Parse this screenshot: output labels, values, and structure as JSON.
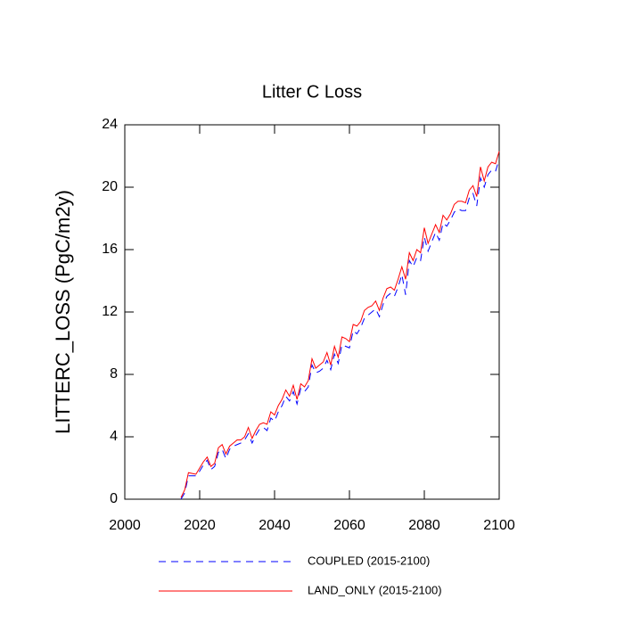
{
  "chart_data": {
    "type": "line",
    "title": "Litter C Loss",
    "y_label": "LITTERC_LOSS  (PgC/m2y)",
    "x": [
      2015,
      2016,
      2017,
      2018,
      2019,
      2020,
      2021,
      2022,
      2023,
      2024,
      2025,
      2026,
      2027,
      2028,
      2029,
      2030,
      2031,
      2032,
      2033,
      2034,
      2035,
      2036,
      2037,
      2038,
      2039,
      2040,
      2041,
      2042,
      2043,
      2044,
      2045,
      2046,
      2047,
      2048,
      2049,
      2050,
      2051,
      2052,
      2053,
      2054,
      2055,
      2056,
      2057,
      2058,
      2059,
      2060,
      2061,
      2062,
      2063,
      2064,
      2065,
      2066,
      2067,
      2068,
      2069,
      2070,
      2071,
      2072,
      2073,
      2074,
      2075,
      2076,
      2077,
      2078,
      2079,
      2080,
      2081,
      2082,
      2083,
      2084,
      2085,
      2086,
      2087,
      2088,
      2089,
      2090,
      2091,
      2092,
      2093,
      2094,
      2095,
      2096,
      2097,
      2098,
      2099,
      2100
    ],
    "series": [
      {
        "name": "COUPLED (2015-2100)",
        "color": "#0000ff",
        "style": "dashed",
        "values": [
          0.0,
          0.4,
          1.5,
          1.5,
          1.5,
          1.8,
          2.2,
          2.5,
          1.9,
          2.1,
          3.0,
          3.2,
          2.6,
          3.2,
          3.4,
          3.5,
          3.6,
          3.8,
          4.2,
          3.6,
          4.1,
          4.5,
          4.6,
          4.4,
          5.2,
          5.0,
          5.6,
          6.0,
          6.6,
          6.3,
          6.9,
          6.1,
          7.1,
          6.9,
          7.2,
          8.6,
          8.1,
          8.2,
          8.4,
          8.9,
          8.3,
          9.3,
          8.7,
          9.9,
          9.8,
          9.7,
          10.8,
          10.6,
          11.0,
          11.6,
          11.8,
          12.0,
          12.2,
          11.7,
          12.5,
          13.0,
          13.2,
          13.0,
          13.6,
          14.4,
          13.1,
          15.3,
          14.9,
          15.5,
          15.3,
          16.8,
          15.9,
          16.5,
          17.1,
          16.6,
          17.7,
          17.5,
          17.9,
          18.4,
          18.6,
          18.5,
          18.5,
          19.3,
          19.6,
          18.8,
          20.6,
          20.0,
          20.8,
          21.1,
          21.0,
          21.8
        ]
      },
      {
        "name": "LAND_ONLY (2015-2100)",
        "color": "#ff0000",
        "style": "solid",
        "values": [
          0.1,
          0.6,
          1.7,
          1.65,
          1.6,
          2.0,
          2.4,
          2.7,
          2.1,
          2.3,
          3.3,
          3.5,
          2.9,
          3.4,
          3.6,
          3.8,
          3.8,
          4.0,
          4.6,
          3.9,
          4.4,
          4.8,
          4.9,
          4.8,
          5.6,
          5.4,
          6.0,
          6.4,
          7.0,
          6.6,
          7.3,
          6.4,
          7.4,
          7.2,
          7.6,
          9.0,
          8.4,
          8.6,
          8.8,
          9.4,
          8.6,
          9.8,
          9.1,
          10.4,
          10.3,
          10.1,
          11.2,
          11.1,
          11.4,
          12.1,
          12.3,
          12.4,
          12.7,
          12.1,
          12.9,
          13.5,
          13.6,
          13.4,
          14.1,
          14.9,
          14.1,
          15.8,
          15.3,
          16.0,
          15.8,
          17.4,
          16.4,
          17.0,
          17.6,
          17.1,
          18.2,
          17.9,
          18.3,
          18.9,
          19.1,
          19.1,
          19.0,
          19.8,
          20.1,
          19.4,
          21.3,
          20.4,
          21.3,
          21.6,
          21.5,
          22.3
        ]
      }
    ],
    "xlim": [
      2000,
      2100
    ],
    "xticks": [
      2000,
      2020,
      2040,
      2060,
      2080,
      2100
    ],
    "ylim": [
      0,
      24
    ],
    "yticks": [
      0,
      4,
      8,
      12,
      16,
      20,
      24
    ],
    "grid": false,
    "legend": "bottom"
  }
}
